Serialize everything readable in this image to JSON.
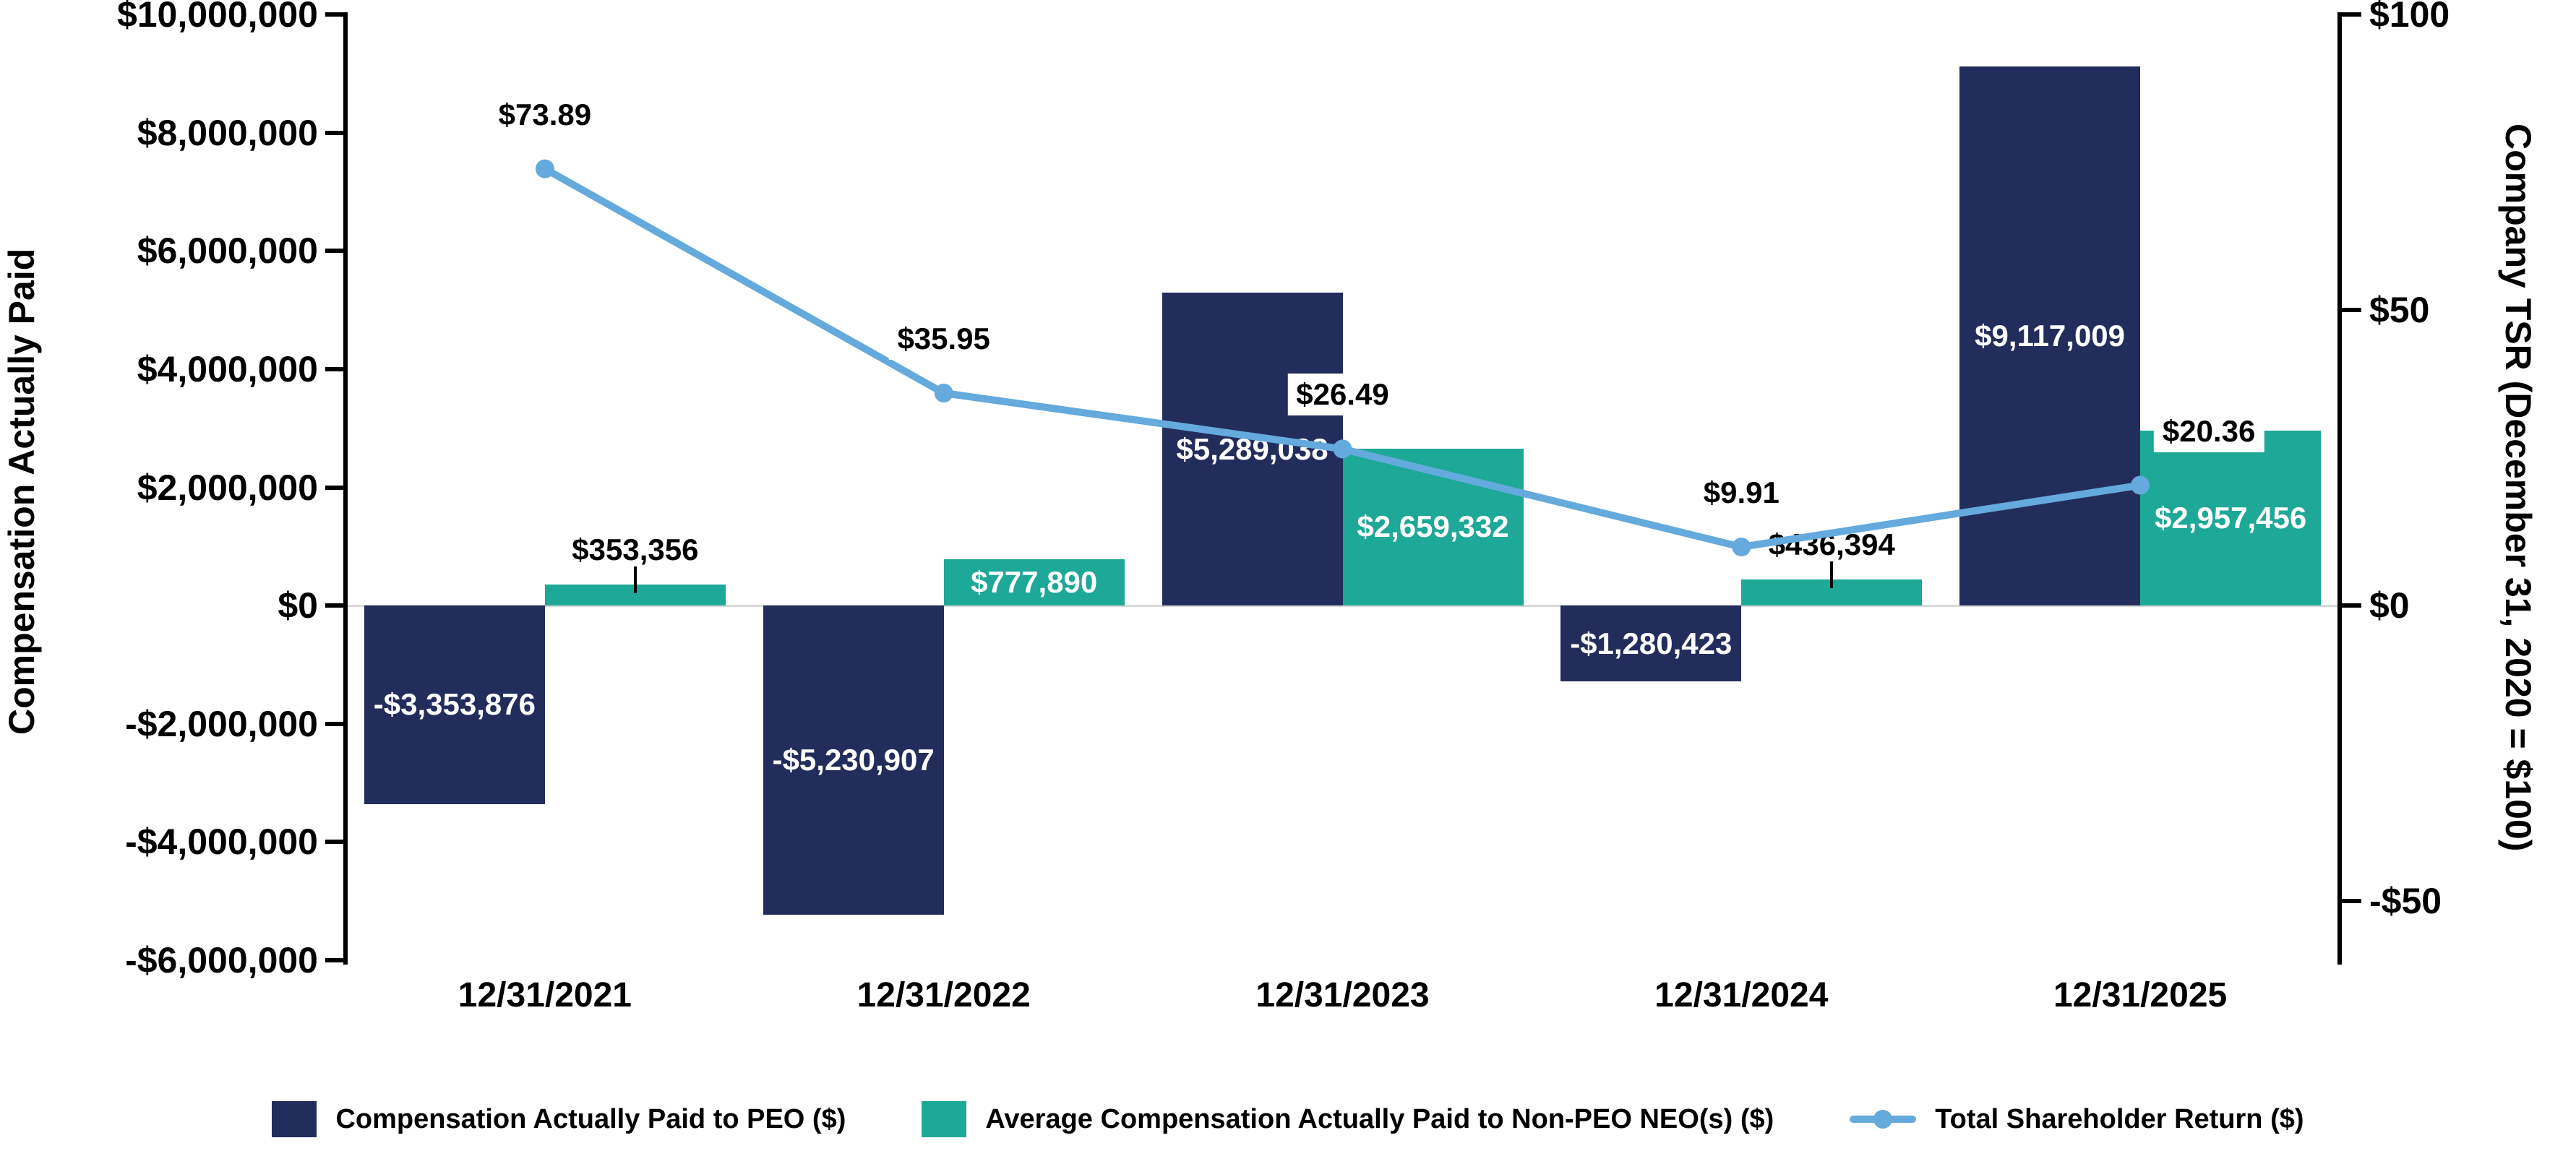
{
  "chart_data": {
    "type": "combo",
    "categories": [
      "12/31/2021",
      "12/31/2022",
      "12/31/2023",
      "12/31/2024",
      "12/31/2025"
    ],
    "series": [
      {
        "name": "Compensation Actually Paid to PEO ($)",
        "type": "bar",
        "color": "#232D5C",
        "label_color": "#FFFFFF",
        "values": [
          -3353876,
          -5230907,
          5289038,
          -1280423,
          9117009
        ],
        "labels": [
          "-$3,353,876",
          "-$5,230,907",
          "$5,289,038",
          "-$1,280,423",
          "$9,117,009"
        ]
      },
      {
        "name": "Average Compensation Actually Paid to Non-PEO NEO(s) ($)",
        "type": "bar",
        "color": "#1EA897",
        "label_color": "#FFFFFF",
        "values": [
          353356,
          777890,
          2659332,
          436394,
          2957456
        ],
        "labels": [
          "$353,356",
          "$777,890",
          "$2,659,332",
          "$436,394",
          "$2,957,456"
        ]
      },
      {
        "name": "Total Shareholder Return ($)",
        "type": "line",
        "color": "#64AADC",
        "values": [
          73.89,
          35.95,
          26.49,
          9.91,
          20.36
        ],
        "labels": [
          "$73.89",
          "$35.95",
          "$26.49",
          "$9.91",
          "$20.36"
        ]
      }
    ],
    "left_axis": {
      "title": "Compensation Actually Paid",
      "max": 10000000,
      "min": -6000000,
      "step": 2000000,
      "tick_values": [
        10000000,
        8000000,
        6000000,
        4000000,
        2000000,
        0,
        -2000000,
        -4000000,
        -6000000
      ],
      "tick_labels": [
        "$10,000,000",
        "$8,000,000",
        "$6,000,000",
        "$4,000,000",
        "$2,000,000",
        "$0",
        "-$2,000,000",
        "-$4,000,000",
        "-$6,000,000"
      ]
    },
    "right_axis": {
      "title": "Company TSR (December 31, 2020 = $100)",
      "max": 100,
      "min": -60,
      "tick_values": [
        100,
        50,
        0,
        -50
      ],
      "tick_labels": [
        "$100",
        "$50",
        "$0",
        "-$50"
      ]
    },
    "legend_position": "bottom",
    "grid": "zero line only",
    "background": "#FFFFFF"
  }
}
